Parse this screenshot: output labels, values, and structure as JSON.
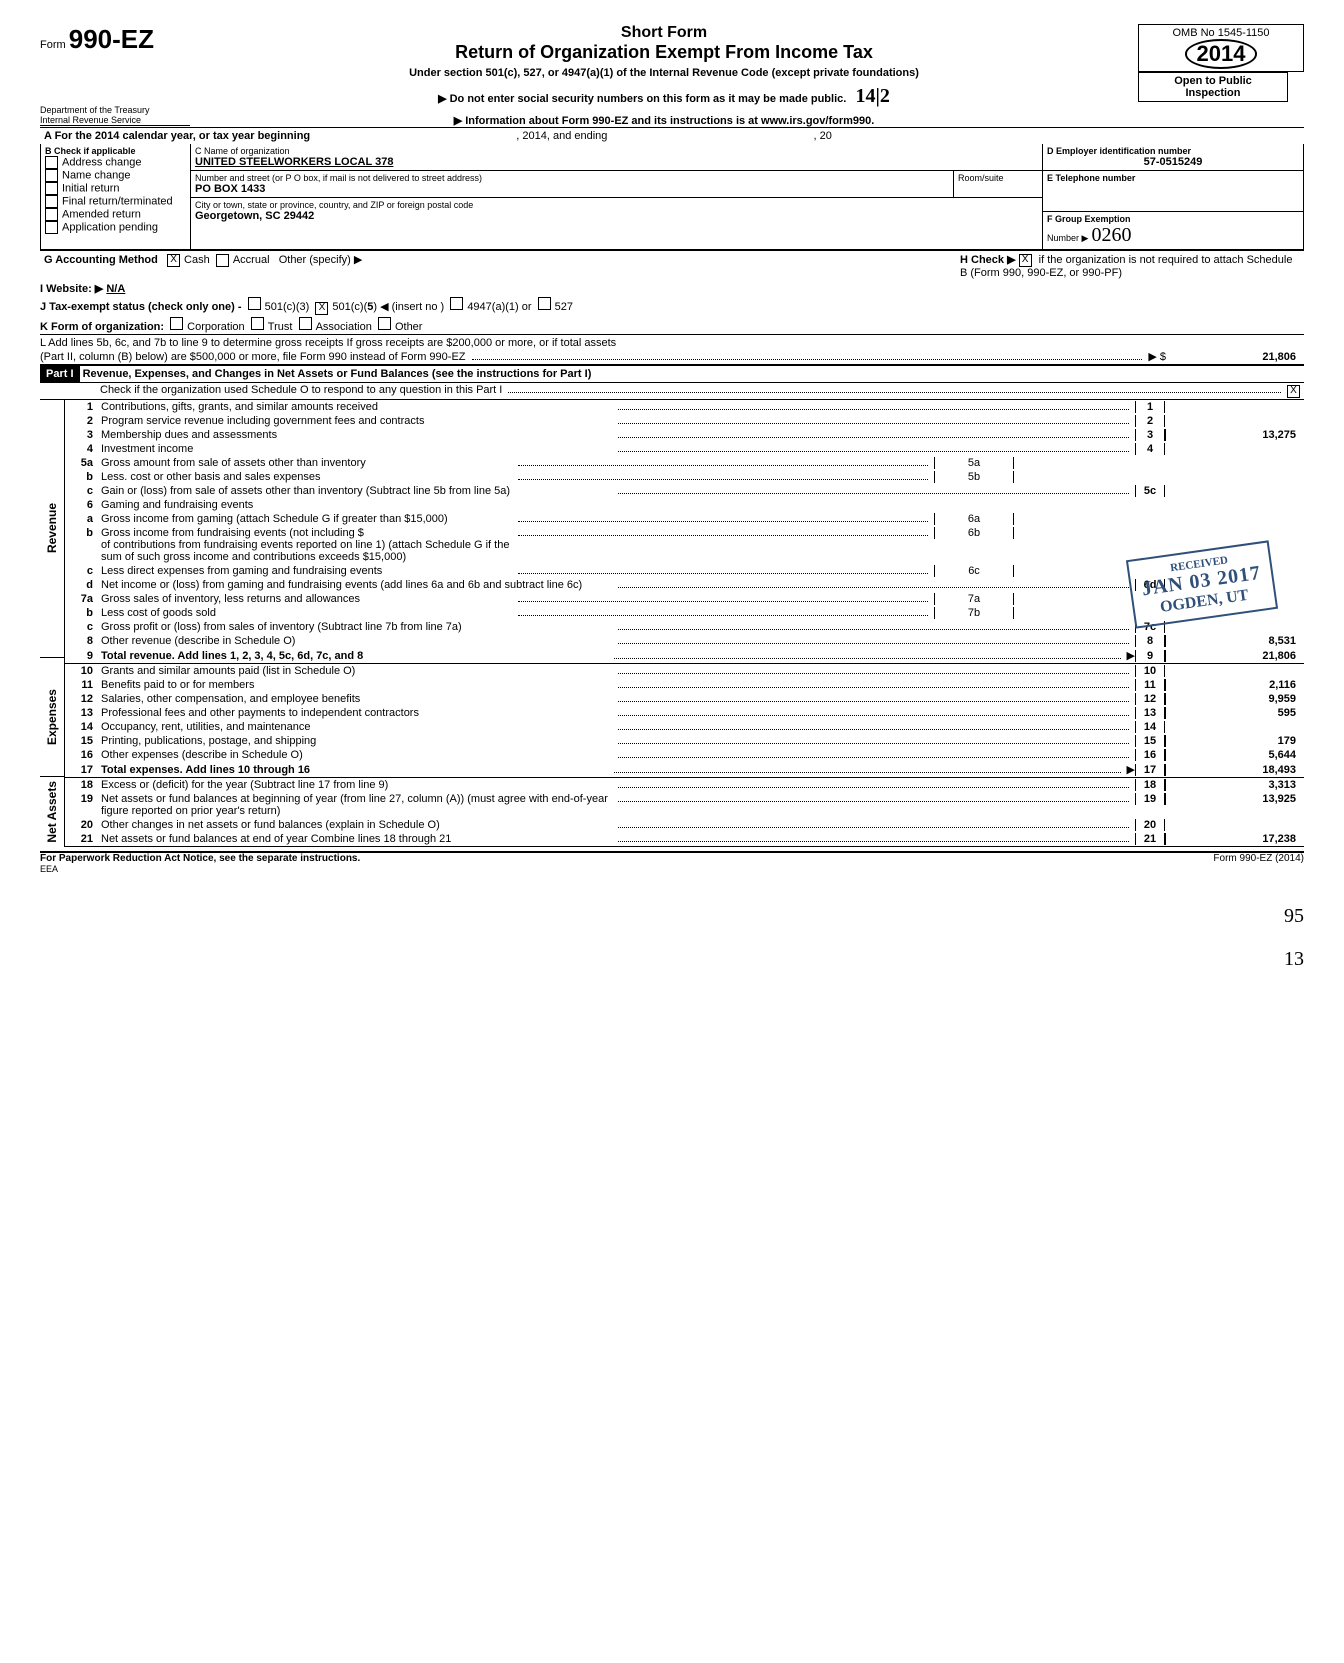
{
  "omb": "OMB No 1545-1150",
  "form_label": "Form",
  "form_no": "990-EZ",
  "year": "2014",
  "title1": "Short Form",
  "title2": "Return of Organization Exempt From Income Tax",
  "subtitle": "Under section 501(c), 527, or 4947(a)(1) of the Internal Revenue Code (except private foundations)",
  "ssn_notice": "▶  Do not enter social security numbers on this form as it may be made public.",
  "info_notice": "▶  Information about Form 990-EZ and its instructions is at www.irs.gov/form990.",
  "dept1": "Department of the Treasury",
  "dept2": "Internal Revenue Service",
  "open_public1": "Open to Public",
  "open_public2": "Inspection",
  "hand_note": "14|2",
  "rowA": "A  For the 2014 calendar year, or tax year beginning",
  "rowA_mid": ", 2014, and ending",
  "rowA_end": ", 20",
  "B_label": "B  Check if applicable",
  "B_items": [
    "Address change",
    "Name change",
    "Initial return",
    "Final return/terminated",
    "Amended return",
    "Application pending"
  ],
  "C_label": "C  Name of organization",
  "C_value": "UNITED STEELWORKERS LOCAL 378",
  "C_addr_label": "Number and street (or P O box, if mail is not delivered to street address)",
  "C_room": "Room/suite",
  "C_addr": "PO BOX 1433",
  "C_city_label": "City or town, state or province, country, and ZIP or foreign postal code",
  "C_city": "Georgetown, SC 29442",
  "D_label": "D  Employer identification number",
  "D_value": "57-0515249",
  "E_label": "E  Telephone number",
  "F_label": "F  Group Exemption",
  "F_label2": "Number  ▶",
  "F_value": "0260",
  "G_label": "G  Accounting Method",
  "G_cash": "Cash",
  "G_accrual": "Accrual",
  "G_other": "Other (specify) ▶",
  "H_label": "H  Check ▶",
  "H_text": "if the organization is not required to attach Schedule B (Form 990, 990-EZ, or 990-PF)",
  "I_label": "I   Website:   ▶",
  "I_value": "N/A",
  "J_label": "J   Tax-exempt status (check only one) -",
  "J_501c3": "501(c)(3)",
  "J_501c": "501(c)(",
  "J_501c_no": "5",
  "J_insert": ")  ◀ (insert no )",
  "J_4947": "4947(a)(1) or",
  "J_527": "527",
  "K_label": "K  Form of organization:",
  "K_corp": "Corporation",
  "K_trust": "Trust",
  "K_assoc": "Association",
  "K_other": "Other",
  "L_text1": "L  Add lines 5b, 6c, and 7b to line 9 to determine gross receipts  If gross receipts are $200,000 or more, or if total assets",
  "L_text2": "(Part II, column (B) below) are $500,000 or more, file Form 990 instead of Form 990-EZ",
  "L_amount": "21,806",
  "part1_label": "Part I",
  "part1_title": "Revenue, Expenses, and Changes in Net Assets or Fund Balances (see the instructions for Part I)",
  "part1_check": "Check if the organization used Schedule O to respond to any question in this Part I",
  "lines": {
    "1": {
      "label": "Contributions, gifts, grants, and similar amounts received",
      "num": "1",
      "amt": ""
    },
    "2": {
      "label": "Program service revenue including government fees and contracts",
      "num": "2",
      "amt": ""
    },
    "3": {
      "label": "Membership dues and assessments",
      "num": "3",
      "amt": "13,275"
    },
    "4": {
      "label": "Investment income",
      "num": "4",
      "amt": ""
    },
    "5a": {
      "label": "Gross amount from sale of assets other than inventory",
      "sub": "5a"
    },
    "5b": {
      "label": "Less. cost or other basis and sales expenses",
      "sub": "5b",
      "pre": "b"
    },
    "5c": {
      "label": "Gain or (loss) from sale of assets other than inventory (Subtract line 5b from line 5a)",
      "num": "5c",
      "pre": "c"
    },
    "6": {
      "label": "Gaming and fundraising events"
    },
    "6a": {
      "label": "Gross income from gaming (attach Schedule G if greater than $15,000)",
      "sub": "6a",
      "pre": "a"
    },
    "6b": {
      "label": "Gross income from fundraising events (not including $",
      "label2": "of contributions from fundraising events reported on line 1) (attach Schedule G if the sum of such gross income and contributions exceeds $15,000)",
      "sub": "6b",
      "pre": "b"
    },
    "6c": {
      "label": "Less  direct expenses from gaming and fundraising events",
      "sub": "6c",
      "pre": "c"
    },
    "6d": {
      "label": "Net income or (loss) from gaming and fundraising events (add lines 6a and 6b and subtract line 6c)",
      "num": "6d",
      "pre": "d"
    },
    "7a": {
      "label": "Gross sales of inventory, less returns and allowances",
      "sub": "7a"
    },
    "7b": {
      "label": "Less  cost of goods sold",
      "sub": "7b",
      "pre": "b"
    },
    "7c": {
      "label": "Gross profit or (loss) from sales of inventory (Subtract line 7b from line 7a)",
      "num": "7c",
      "pre": "c"
    },
    "8": {
      "label": "Other revenue (describe in Schedule O)",
      "num": "8",
      "amt": "8,531"
    },
    "9": {
      "label": "Total revenue. Add lines 1, 2, 3, 4, 5c, 6d, 7c, and 8",
      "num": "9",
      "amt": "21,806",
      "bold": true
    },
    "10": {
      "label": "Grants and similar amounts paid (list in Schedule O)",
      "num": "10"
    },
    "11": {
      "label": "Benefits paid to or for members",
      "num": "11",
      "amt": "2,116"
    },
    "12": {
      "label": "Salaries, other compensation, and employee benefits",
      "num": "12",
      "amt": "9,959"
    },
    "13": {
      "label": "Professional fees and other payments to independent contractors",
      "num": "13",
      "amt": "595"
    },
    "14": {
      "label": "Occupancy, rent, utilities, and maintenance",
      "num": "14"
    },
    "15": {
      "label": "Printing, publications, postage, and shipping",
      "num": "15",
      "amt": "179"
    },
    "16": {
      "label": "Other expenses (describe in Schedule O)",
      "num": "16",
      "amt": "5,644"
    },
    "17": {
      "label": "Total expenses. Add lines 10 through 16",
      "num": "17",
      "amt": "18,493",
      "bold": true
    },
    "18": {
      "label": "Excess or (deficit) for the year (Subtract line 17 from line 9)",
      "num": "18",
      "amt": "3,313"
    },
    "19": {
      "label": "Net assets or fund balances at beginning of year (from line 27, column (A)) (must agree with end-of-year figure reported on prior year's return)",
      "num": "19",
      "amt": "13,925"
    },
    "20": {
      "label": "Other changes in net assets or fund balances (explain in Schedule O)",
      "num": "20"
    },
    "21": {
      "label": "Net assets or fund balances at end of year  Combine lines 18 through 21",
      "num": "21",
      "amt": "17,238"
    }
  },
  "side_labels": {
    "revenue": "Revenue",
    "expenses": "Expenses",
    "netassets": "Net Assets"
  },
  "stamp": {
    "received": "RECEIVED",
    "date": "JAN 03 2017",
    "loc": "OGDEN, UT"
  },
  "footer_left": "For Paperwork Reduction Act Notice, see the separate instructions.",
  "footer_eea": "EEA",
  "footer_right": "Form 990-EZ (2014)",
  "hand95": "95",
  "hand13": "13"
}
